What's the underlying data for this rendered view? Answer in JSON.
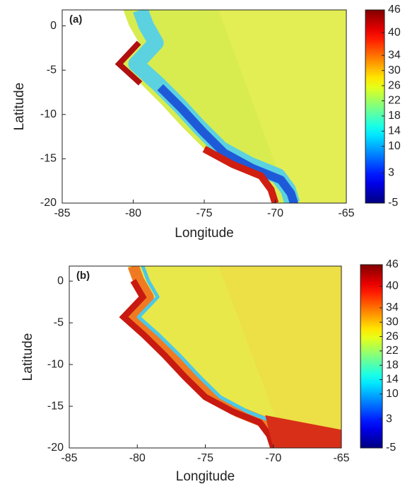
{
  "chart_data": [
    {
      "type": "heatmap",
      "panel_label": "(a)",
      "xlabel": "Longitude",
      "ylabel": "Latitude",
      "xlim": [
        -85,
        -65
      ],
      "xticks": [
        -85,
        -80,
        -75,
        -70,
        -65
      ],
      "ylim": [
        -20,
        1.8
      ],
      "yticks": [
        -20,
        -15,
        -10,
        -5,
        0
      ],
      "colorbar": {
        "lim": [
          -5,
          46
        ],
        "ticks": [
          -5,
          3,
          10,
          14,
          18,
          22,
          26,
          30,
          34,
          40,
          46
        ],
        "colormap": "jet"
      }
    },
    {
      "type": "heatmap",
      "panel_label": "(b)",
      "xlabel": "Longitude",
      "ylabel": "Latitude",
      "xlim": [
        -85,
        -65
      ],
      "xticks": [
        -85,
        -80,
        -75,
        -70,
        -65
      ],
      "ylim": [
        -20,
        1.8
      ],
      "yticks": [
        -20,
        -15,
        -10,
        -5,
        0
      ],
      "colorbar": {
        "lim": [
          -5,
          46
        ],
        "ticks": [
          -5,
          3,
          10,
          14,
          18,
          22,
          26,
          30,
          34,
          40,
          46
        ],
        "colormap": "jet"
      }
    }
  ]
}
